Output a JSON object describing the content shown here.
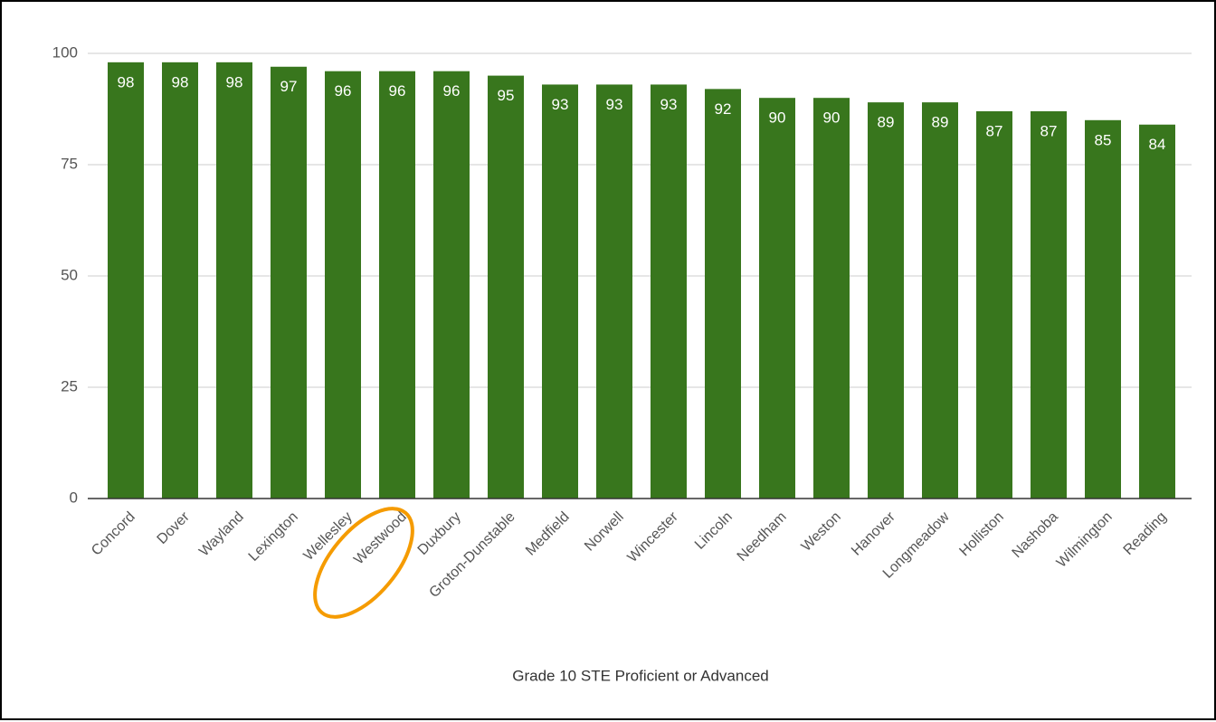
{
  "chart_data": {
    "type": "bar",
    "x_label": "Grade 10 STE Proficient or Advanced",
    "categories": [
      "Concord",
      "Dover",
      "Wayland",
      "Lexington",
      "Wellesley",
      "Westwood",
      "Duxbury",
      "Groton-Dunstable",
      "Medfield",
      "Norwell",
      "Wincester",
      "Lincoln",
      "Needham",
      "Weston",
      "Hanover",
      "Longmeadow",
      "Holliston",
      "Nashoba",
      "Wilmington",
      "Reading"
    ],
    "values": [
      98,
      98,
      98,
      97,
      96,
      96,
      96,
      95,
      93,
      93,
      93,
      92,
      90,
      90,
      89,
      89,
      87,
      87,
      85,
      84
    ],
    "color": "#38761d",
    "ylim": [
      0,
      100
    ],
    "yticks": [
      0,
      25,
      50,
      75,
      100
    ],
    "grid": true,
    "data_labels": true
  }
}
